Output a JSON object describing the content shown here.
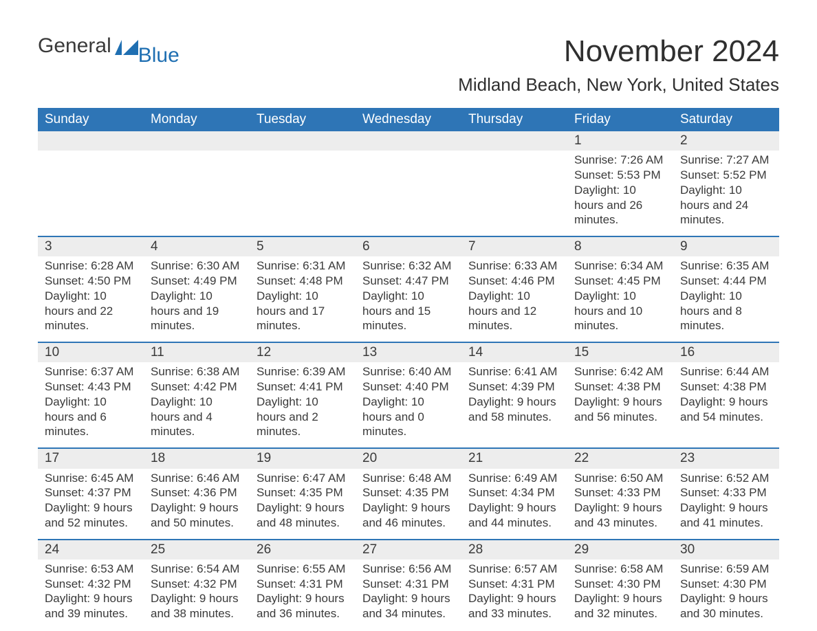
{
  "logo": {
    "text1": "General",
    "text2": "Blue",
    "icon_color": "#1f6fb2"
  },
  "title": "November 2024",
  "location": "Midland Beach, New York, United States",
  "colors": {
    "header_bg": "#2e75b6",
    "header_text": "#ffffff",
    "daynum_bg": "#ededed",
    "row_border": "#2e75b6",
    "body_text": "#3a3a3a",
    "page_bg": "#ffffff",
    "logo_blue": "#1f6fb2"
  },
  "typography": {
    "title_fontsize": 44,
    "location_fontsize": 26,
    "weekday_fontsize": 19,
    "daynum_fontsize": 19,
    "cell_fontsize": 17,
    "font_family": "Arial"
  },
  "layout": {
    "columns": 7,
    "col_width_pct": 14.2857
  },
  "weekdays": [
    "Sunday",
    "Monday",
    "Tuesday",
    "Wednesday",
    "Thursday",
    "Friday",
    "Saturday"
  ],
  "weeks": [
    [
      null,
      null,
      null,
      null,
      null,
      {
        "n": "1",
        "sunrise": "Sunrise: 7:26 AM",
        "sunset": "Sunset: 5:53 PM",
        "daylight": "Daylight: 10 hours and 26 minutes."
      },
      {
        "n": "2",
        "sunrise": "Sunrise: 7:27 AM",
        "sunset": "Sunset: 5:52 PM",
        "daylight": "Daylight: 10 hours and 24 minutes."
      }
    ],
    [
      {
        "n": "3",
        "sunrise": "Sunrise: 6:28 AM",
        "sunset": "Sunset: 4:50 PM",
        "daylight": "Daylight: 10 hours and 22 minutes."
      },
      {
        "n": "4",
        "sunrise": "Sunrise: 6:30 AM",
        "sunset": "Sunset: 4:49 PM",
        "daylight": "Daylight: 10 hours and 19 minutes."
      },
      {
        "n": "5",
        "sunrise": "Sunrise: 6:31 AM",
        "sunset": "Sunset: 4:48 PM",
        "daylight": "Daylight: 10 hours and 17 minutes."
      },
      {
        "n": "6",
        "sunrise": "Sunrise: 6:32 AM",
        "sunset": "Sunset: 4:47 PM",
        "daylight": "Daylight: 10 hours and 15 minutes."
      },
      {
        "n": "7",
        "sunrise": "Sunrise: 6:33 AM",
        "sunset": "Sunset: 4:46 PM",
        "daylight": "Daylight: 10 hours and 12 minutes."
      },
      {
        "n": "8",
        "sunrise": "Sunrise: 6:34 AM",
        "sunset": "Sunset: 4:45 PM",
        "daylight": "Daylight: 10 hours and 10 minutes."
      },
      {
        "n": "9",
        "sunrise": "Sunrise: 6:35 AM",
        "sunset": "Sunset: 4:44 PM",
        "daylight": "Daylight: 10 hours and 8 minutes."
      }
    ],
    [
      {
        "n": "10",
        "sunrise": "Sunrise: 6:37 AM",
        "sunset": "Sunset: 4:43 PM",
        "daylight": "Daylight: 10 hours and 6 minutes."
      },
      {
        "n": "11",
        "sunrise": "Sunrise: 6:38 AM",
        "sunset": "Sunset: 4:42 PM",
        "daylight": "Daylight: 10 hours and 4 minutes."
      },
      {
        "n": "12",
        "sunrise": "Sunrise: 6:39 AM",
        "sunset": "Sunset: 4:41 PM",
        "daylight": "Daylight: 10 hours and 2 minutes."
      },
      {
        "n": "13",
        "sunrise": "Sunrise: 6:40 AM",
        "sunset": "Sunset: 4:40 PM",
        "daylight": "Daylight: 10 hours and 0 minutes."
      },
      {
        "n": "14",
        "sunrise": "Sunrise: 6:41 AM",
        "sunset": "Sunset: 4:39 PM",
        "daylight": "Daylight: 9 hours and 58 minutes."
      },
      {
        "n": "15",
        "sunrise": "Sunrise: 6:42 AM",
        "sunset": "Sunset: 4:38 PM",
        "daylight": "Daylight: 9 hours and 56 minutes."
      },
      {
        "n": "16",
        "sunrise": "Sunrise: 6:44 AM",
        "sunset": "Sunset: 4:38 PM",
        "daylight": "Daylight: 9 hours and 54 minutes."
      }
    ],
    [
      {
        "n": "17",
        "sunrise": "Sunrise: 6:45 AM",
        "sunset": "Sunset: 4:37 PM",
        "daylight": "Daylight: 9 hours and 52 minutes."
      },
      {
        "n": "18",
        "sunrise": "Sunrise: 6:46 AM",
        "sunset": "Sunset: 4:36 PM",
        "daylight": "Daylight: 9 hours and 50 minutes."
      },
      {
        "n": "19",
        "sunrise": "Sunrise: 6:47 AM",
        "sunset": "Sunset: 4:35 PM",
        "daylight": "Daylight: 9 hours and 48 minutes."
      },
      {
        "n": "20",
        "sunrise": "Sunrise: 6:48 AM",
        "sunset": "Sunset: 4:35 PM",
        "daylight": "Daylight: 9 hours and 46 minutes."
      },
      {
        "n": "21",
        "sunrise": "Sunrise: 6:49 AM",
        "sunset": "Sunset: 4:34 PM",
        "daylight": "Daylight: 9 hours and 44 minutes."
      },
      {
        "n": "22",
        "sunrise": "Sunrise: 6:50 AM",
        "sunset": "Sunset: 4:33 PM",
        "daylight": "Daylight: 9 hours and 43 minutes."
      },
      {
        "n": "23",
        "sunrise": "Sunrise: 6:52 AM",
        "sunset": "Sunset: 4:33 PM",
        "daylight": "Daylight: 9 hours and 41 minutes."
      }
    ],
    [
      {
        "n": "24",
        "sunrise": "Sunrise: 6:53 AM",
        "sunset": "Sunset: 4:32 PM",
        "daylight": "Daylight: 9 hours and 39 minutes."
      },
      {
        "n": "25",
        "sunrise": "Sunrise: 6:54 AM",
        "sunset": "Sunset: 4:32 PM",
        "daylight": "Daylight: 9 hours and 38 minutes."
      },
      {
        "n": "26",
        "sunrise": "Sunrise: 6:55 AM",
        "sunset": "Sunset: 4:31 PM",
        "daylight": "Daylight: 9 hours and 36 minutes."
      },
      {
        "n": "27",
        "sunrise": "Sunrise: 6:56 AM",
        "sunset": "Sunset: 4:31 PM",
        "daylight": "Daylight: 9 hours and 34 minutes."
      },
      {
        "n": "28",
        "sunrise": "Sunrise: 6:57 AM",
        "sunset": "Sunset: 4:31 PM",
        "daylight": "Daylight: 9 hours and 33 minutes."
      },
      {
        "n": "29",
        "sunrise": "Sunrise: 6:58 AM",
        "sunset": "Sunset: 4:30 PM",
        "daylight": "Daylight: 9 hours and 32 minutes."
      },
      {
        "n": "30",
        "sunrise": "Sunrise: 6:59 AM",
        "sunset": "Sunset: 4:30 PM",
        "daylight": "Daylight: 9 hours and 30 minutes."
      }
    ]
  ]
}
